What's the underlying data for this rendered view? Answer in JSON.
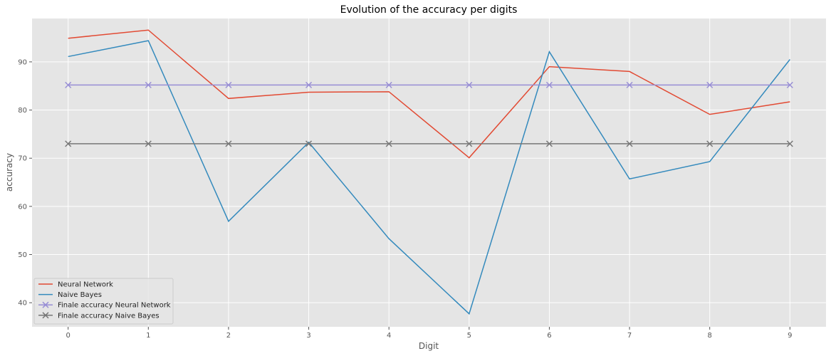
{
  "chart_data": {
    "type": "line",
    "title": "Evolution of the accuracy per digits",
    "xlabel": "Digit",
    "ylabel": "accuracy",
    "x": [
      0,
      1,
      2,
      3,
      4,
      5,
      6,
      7,
      8,
      9
    ],
    "xlim": [
      -0.45,
      9.45
    ],
    "ylim": [
      35,
      99
    ],
    "yticks": [
      40,
      50,
      60,
      70,
      80,
      90
    ],
    "grid": true,
    "legend_position": "lower-left",
    "series": [
      {
        "name": "Neural Network",
        "color": "#E24A33",
        "marker": "none",
        "values": [
          94.9,
          96.6,
          82.4,
          83.7,
          83.8,
          70.1,
          89.0,
          88.0,
          79.1,
          81.7
        ]
      },
      {
        "name": "Naive Bayes",
        "color": "#348ABD",
        "marker": "none",
        "values": [
          91.1,
          94.4,
          56.9,
          73.3,
          53.3,
          37.7,
          92.1,
          65.7,
          69.3,
          90.5
        ]
      },
      {
        "name": "Finale accuracy Neural Network",
        "color": "#988ED5",
        "marker": "x",
        "values": [
          85.2,
          85.2,
          85.2,
          85.2,
          85.2,
          85.2,
          85.2,
          85.2,
          85.2,
          85.2
        ]
      },
      {
        "name": "Finale accuracy Naive Bayes",
        "color": "#777777",
        "marker": "x",
        "values": [
          73.0,
          73.0,
          73.0,
          73.0,
          73.0,
          73.0,
          73.0,
          73.0,
          73.0,
          73.0
        ]
      }
    ]
  }
}
